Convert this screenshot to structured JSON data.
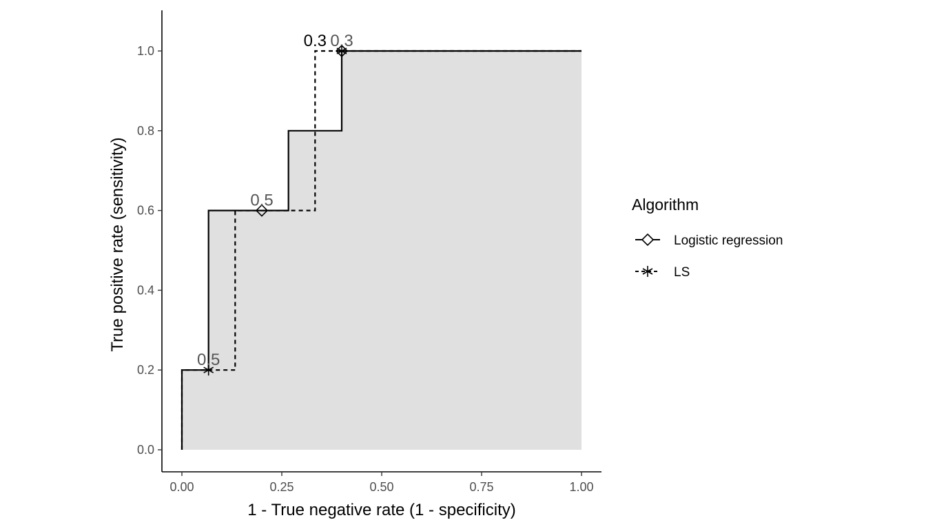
{
  "chart_data": {
    "type": "line",
    "title": "",
    "xlabel": "1 - True negative rate (1 - specificity)",
    "ylabel": "True positive rate (sensitivity)",
    "xlim": [
      -0.05,
      1.05
    ],
    "ylim": [
      -0.05,
      1.1
    ],
    "xticks": [
      "0.00",
      "0.25",
      "0.50",
      "0.75",
      "1.00"
    ],
    "xtick_values": [
      0,
      0.25,
      0.5,
      0.75,
      1
    ],
    "yticks": [
      "0.0",
      "0.2",
      "0.4",
      "0.6",
      "0.8",
      "1.0"
    ],
    "ytick_values": [
      0,
      0.2,
      0.4,
      0.6,
      0.8,
      1
    ],
    "grid": false,
    "legend": {
      "title": "Algorithm",
      "placement": "right"
    },
    "shaded_area_under": "Logistic regression",
    "shade_color": "#e0e0e0",
    "series": [
      {
        "name": "Logistic regression",
        "linestyle": "solid",
        "marker": "diamond",
        "step_points": [
          [
            0,
            0
          ],
          [
            0,
            0.2
          ],
          [
            0.0667,
            0.2
          ],
          [
            0.0667,
            0.6
          ],
          [
            0.2667,
            0.6
          ],
          [
            0.2667,
            0.8
          ],
          [
            0.4,
            0.8
          ],
          [
            0.4,
            1.0
          ],
          [
            1.0,
            1.0
          ]
        ],
        "markers": [
          {
            "x": 0.2,
            "y": 0.6,
            "label": "0.5"
          },
          {
            "x": 0.4,
            "y": 1.0,
            "label": "0.3"
          }
        ]
      },
      {
        "name": "LS",
        "linestyle": "dashed",
        "marker": "asterisk",
        "step_points": [
          [
            0,
            0
          ],
          [
            0,
            0.2
          ],
          [
            0.1333,
            0.2
          ],
          [
            0.1333,
            0.6
          ],
          [
            0.3333,
            0.6
          ],
          [
            0.3333,
            1.0
          ],
          [
            1.0,
            1.0
          ]
        ],
        "markers": [
          {
            "x": 0.0667,
            "y": 0.2,
            "label": "0.5"
          },
          {
            "x": 0.4,
            "y": 1.0,
            "label": "0.3"
          }
        ]
      }
    ]
  }
}
